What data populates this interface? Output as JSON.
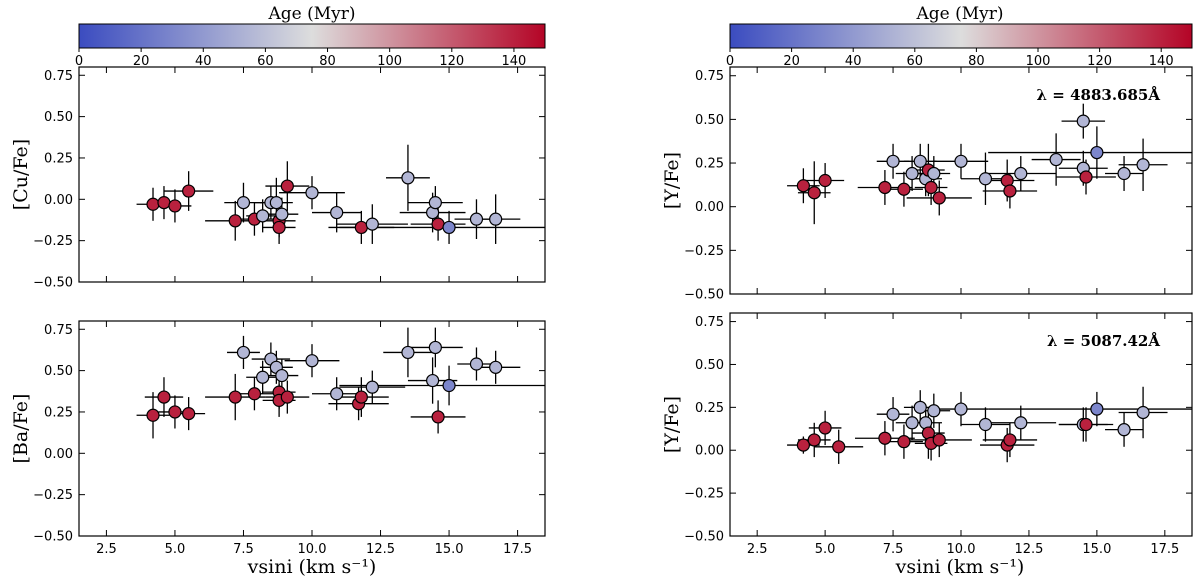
{
  "colorbar": {
    "title": "Age (Myr)",
    "range": [
      0,
      150
    ],
    "ticks": [
      0,
      20,
      40,
      60,
      80,
      100,
      120,
      140
    ],
    "colors": {
      "low": "#3b4cc0",
      "mid": "#dddddd",
      "high": "#b40426"
    }
  },
  "x_axis": {
    "label": "vsini (km s⁻¹)",
    "range": [
      1.5,
      18.5
    ],
    "ticks": [
      2.5,
      5.0,
      7.5,
      10.0,
      12.5,
      15.0,
      17.5
    ],
    "tick_labels": [
      "2.5",
      "5.0",
      "7.5",
      "10.0",
      "12.5",
      "15.0",
      "17.5"
    ]
  },
  "y_ticks": [
    0.75,
    0.5,
    0.25,
    0.0,
    -0.25,
    -0.5
  ],
  "y_tick_labels": [
    "0.75",
    "0.50",
    "0.25",
    "0.00",
    "−0.25",
    "−0.50"
  ],
  "chart_data": [
    {
      "type": "scatter",
      "id": "cu",
      "ylabel": "[Cu/Fe]",
      "annotation": "",
      "ylim": [
        -0.5,
        0.8
      ],
      "points": [
        {
          "x": 4.2,
          "y": -0.03,
          "xerr": 0.6,
          "yerr": 0.1,
          "age": 140
        },
        {
          "x": 4.6,
          "y": -0.02,
          "xerr": 0.6,
          "yerr": 0.1,
          "age": 140
        },
        {
          "x": 5.0,
          "y": -0.04,
          "xerr": 0.6,
          "yerr": 0.1,
          "age": 140
        },
        {
          "x": 5.5,
          "y": 0.05,
          "xerr": 0.9,
          "yerr": 0.12,
          "age": 140
        },
        {
          "x": 7.2,
          "y": -0.13,
          "xerr": 1.1,
          "yerr": 0.12,
          "age": 140
        },
        {
          "x": 7.5,
          "y": -0.02,
          "xerr": 0.7,
          "yerr": 0.12,
          "age": 55
        },
        {
          "x": 7.9,
          "y": -0.12,
          "xerr": 0.7,
          "yerr": 0.1,
          "age": 140
        },
        {
          "x": 8.2,
          "y": -0.1,
          "xerr": 0.6,
          "yerr": 0.1,
          "age": 55
        },
        {
          "x": 8.5,
          "y": -0.02,
          "xerr": 0.6,
          "yerr": 0.1,
          "age": 55
        },
        {
          "x": 8.7,
          "y": -0.02,
          "xerr": 0.6,
          "yerr": 0.15,
          "age": 55
        },
        {
          "x": 8.8,
          "y": -0.13,
          "xerr": 0.6,
          "yerr": 0.1,
          "age": 140
        },
        {
          "x": 8.8,
          "y": -0.17,
          "xerr": 0.6,
          "yerr": 0.1,
          "age": 140
        },
        {
          "x": 8.9,
          "y": -0.09,
          "xerr": 0.6,
          "yerr": 0.1,
          "age": 55
        },
        {
          "x": 9.1,
          "y": 0.08,
          "xerr": 0.8,
          "yerr": 0.15,
          "age": 140
        },
        {
          "x": 10.0,
          "y": 0.04,
          "xerr": 1.2,
          "yerr": 0.1,
          "age": 55
        },
        {
          "x": 10.9,
          "y": -0.08,
          "xerr": 0.9,
          "yerr": 0.12,
          "age": 55
        },
        {
          "x": 11.8,
          "y": -0.17,
          "xerr": 1.2,
          "yerr": 0.1,
          "age": 140
        },
        {
          "x": 12.2,
          "y": -0.15,
          "xerr": 1.3,
          "yerr": 0.12,
          "age": 55
        },
        {
          "x": 13.5,
          "y": 0.13,
          "xerr": 0.8,
          "yerr": 0.2,
          "age": 55
        },
        {
          "x": 14.4,
          "y": -0.08,
          "xerr": 1.2,
          "yerr": 0.12,
          "age": 55
        },
        {
          "x": 14.5,
          "y": -0.02,
          "xerr": 1.0,
          "yerr": 0.1,
          "age": 55
        },
        {
          "x": 14.6,
          "y": -0.15,
          "xerr": 1.0,
          "yerr": 0.1,
          "age": 140
        },
        {
          "x": 15.0,
          "y": -0.17,
          "xerr": 4.0,
          "yerr": 0.1,
          "age": 30
        },
        {
          "x": 16.0,
          "y": -0.12,
          "xerr": 0.8,
          "yerr": 0.12,
          "age": 55
        },
        {
          "x": 16.7,
          "y": -0.12,
          "xerr": 0.9,
          "yerr": 0.15,
          "age": 55
        }
      ]
    },
    {
      "type": "scatter",
      "id": "ba",
      "ylabel": "[Ba/Fe]",
      "annotation": "",
      "ylim": [
        -0.5,
        0.8
      ],
      "points": [
        {
          "x": 4.2,
          "y": 0.23,
          "xerr": 0.6,
          "yerr": 0.14,
          "age": 140
        },
        {
          "x": 4.6,
          "y": 0.34,
          "xerr": 0.7,
          "yerr": 0.12,
          "age": 140
        },
        {
          "x": 5.0,
          "y": 0.25,
          "xerr": 0.6,
          "yerr": 0.1,
          "age": 140
        },
        {
          "x": 5.5,
          "y": 0.24,
          "xerr": 0.6,
          "yerr": 0.1,
          "age": 140
        },
        {
          "x": 7.2,
          "y": 0.34,
          "xerr": 1.1,
          "yerr": 0.14,
          "age": 140
        },
        {
          "x": 7.5,
          "y": 0.61,
          "xerr": 0.6,
          "yerr": 0.1,
          "age": 55
        },
        {
          "x": 7.9,
          "y": 0.36,
          "xerr": 0.7,
          "yerr": 0.1,
          "age": 140
        },
        {
          "x": 8.2,
          "y": 0.46,
          "xerr": 0.6,
          "yerr": 0.1,
          "age": 55
        },
        {
          "x": 8.5,
          "y": 0.57,
          "xerr": 0.7,
          "yerr": 0.1,
          "age": 55
        },
        {
          "x": 8.7,
          "y": 0.52,
          "xerr": 0.6,
          "yerr": 0.1,
          "age": 55
        },
        {
          "x": 8.8,
          "y": 0.37,
          "xerr": 0.6,
          "yerr": 0.1,
          "age": 140
        },
        {
          "x": 8.8,
          "y": 0.32,
          "xerr": 0.6,
          "yerr": 0.1,
          "age": 140
        },
        {
          "x": 8.9,
          "y": 0.47,
          "xerr": 0.6,
          "yerr": 0.1,
          "age": 55
        },
        {
          "x": 9.1,
          "y": 0.34,
          "xerr": 0.8,
          "yerr": 0.1,
          "age": 140
        },
        {
          "x": 10.0,
          "y": 0.56,
          "xerr": 1.0,
          "yerr": 0.1,
          "age": 55
        },
        {
          "x": 10.9,
          "y": 0.36,
          "xerr": 0.9,
          "yerr": 0.1,
          "age": 55
        },
        {
          "x": 11.7,
          "y": 0.3,
          "xerr": 1.1,
          "yerr": 0.1,
          "age": 140
        },
        {
          "x": 11.8,
          "y": 0.34,
          "xerr": 1.0,
          "yerr": 0.12,
          "age": 140
        },
        {
          "x": 12.2,
          "y": 0.4,
          "xerr": 1.2,
          "yerr": 0.1,
          "age": 55
        },
        {
          "x": 13.5,
          "y": 0.61,
          "xerr": 0.9,
          "yerr": 0.15,
          "age": 55
        },
        {
          "x": 14.4,
          "y": 0.44,
          "xerr": 0.9,
          "yerr": 0.14,
          "age": 55
        },
        {
          "x": 14.5,
          "y": 0.64,
          "xerr": 1.0,
          "yerr": 0.12,
          "age": 55
        },
        {
          "x": 14.6,
          "y": 0.22,
          "xerr": 1.0,
          "yerr": 0.1,
          "age": 140
        },
        {
          "x": 15.0,
          "y": 0.41,
          "xerr": 4.0,
          "yerr": 0.12,
          "age": 30
        },
        {
          "x": 16.0,
          "y": 0.54,
          "xerr": 0.7,
          "yerr": 0.1,
          "age": 55
        },
        {
          "x": 16.7,
          "y": 0.52,
          "xerr": 0.9,
          "yerr": 0.1,
          "age": 55
        }
      ]
    },
    {
      "type": "scatter",
      "id": "y1",
      "ylabel": "[Y/Fe]",
      "annotation": "λ = 4883.685Å",
      "ylim": [
        -0.5,
        0.8
      ],
      "points": [
        {
          "x": 4.2,
          "y": 0.12,
          "xerr": 0.6,
          "yerr": 0.1,
          "age": 140
        },
        {
          "x": 4.6,
          "y": 0.08,
          "xerr": 0.6,
          "yerr": 0.18,
          "age": 140
        },
        {
          "x": 5.0,
          "y": 0.15,
          "xerr": 0.7,
          "yerr": 0.1,
          "age": 140
        },
        {
          "x": 7.2,
          "y": 0.11,
          "xerr": 1.0,
          "yerr": 0.1,
          "age": 140
        },
        {
          "x": 7.5,
          "y": 0.26,
          "xerr": 0.6,
          "yerr": 0.1,
          "age": 55
        },
        {
          "x": 7.9,
          "y": 0.1,
          "xerr": 0.7,
          "yerr": 0.1,
          "age": 140
        },
        {
          "x": 8.2,
          "y": 0.19,
          "xerr": 0.6,
          "yerr": 0.1,
          "age": 55
        },
        {
          "x": 8.5,
          "y": 0.26,
          "xerr": 0.6,
          "yerr": 0.1,
          "age": 55
        },
        {
          "x": 8.7,
          "y": 0.16,
          "xerr": 0.6,
          "yerr": 0.1,
          "age": 55
        },
        {
          "x": 8.8,
          "y": 0.21,
          "xerr": 0.6,
          "yerr": 0.15,
          "age": 140
        },
        {
          "x": 8.9,
          "y": 0.11,
          "xerr": 0.6,
          "yerr": 0.1,
          "age": 140
        },
        {
          "x": 9.0,
          "y": 0.19,
          "xerr": 0.6,
          "yerr": 0.1,
          "age": 55
        },
        {
          "x": 9.2,
          "y": 0.05,
          "xerr": 1.2,
          "yerr": 0.1,
          "age": 140
        },
        {
          "x": 10.0,
          "y": 0.26,
          "xerr": 1.0,
          "yerr": 0.1,
          "age": 55
        },
        {
          "x": 10.9,
          "y": 0.16,
          "xerr": 0.9,
          "yerr": 0.15,
          "age": 55
        },
        {
          "x": 11.7,
          "y": 0.15,
          "xerr": 1.0,
          "yerr": 0.12,
          "age": 140
        },
        {
          "x": 11.8,
          "y": 0.09,
          "xerr": 1.0,
          "yerr": 0.1,
          "age": 140
        },
        {
          "x": 12.2,
          "y": 0.19,
          "xerr": 1.3,
          "yerr": 0.1,
          "age": 55
        },
        {
          "x": 13.5,
          "y": 0.27,
          "xerr": 0.9,
          "yerr": 0.15,
          "age": 55
        },
        {
          "x": 14.5,
          "y": 0.22,
          "xerr": 0.9,
          "yerr": 0.1,
          "age": 55
        },
        {
          "x": 14.5,
          "y": 0.49,
          "xerr": 0.8,
          "yerr": 0.1,
          "age": 55
        },
        {
          "x": 14.6,
          "y": 0.17,
          "xerr": 1.1,
          "yerr": 0.1,
          "age": 140
        },
        {
          "x": 15.0,
          "y": 0.31,
          "xerr": 4.0,
          "yerr": 0.15,
          "age": 30
        },
        {
          "x": 16.0,
          "y": 0.19,
          "xerr": 0.7,
          "yerr": 0.1,
          "age": 55
        },
        {
          "x": 16.7,
          "y": 0.24,
          "xerr": 0.9,
          "yerr": 0.15,
          "age": 55
        }
      ]
    },
    {
      "type": "scatter",
      "id": "y2",
      "ylabel": "[Y/Fe]",
      "annotation": "λ = 5087.42Å",
      "ylim": [
        -0.5,
        0.8
      ],
      "points": [
        {
          "x": 4.2,
          "y": 0.03,
          "xerr": 0.6,
          "yerr": 0.05,
          "age": 140
        },
        {
          "x": 4.6,
          "y": 0.06,
          "xerr": 0.6,
          "yerr": 0.1,
          "age": 140
        },
        {
          "x": 5.0,
          "y": 0.13,
          "xerr": 0.6,
          "yerr": 0.1,
          "age": 140
        },
        {
          "x": 5.5,
          "y": 0.02,
          "xerr": 0.9,
          "yerr": 0.1,
          "age": 140
        },
        {
          "x": 7.2,
          "y": 0.07,
          "xerr": 1.1,
          "yerr": 0.1,
          "age": 140
        },
        {
          "x": 7.5,
          "y": 0.21,
          "xerr": 0.6,
          "yerr": 0.1,
          "age": 55
        },
        {
          "x": 7.9,
          "y": 0.05,
          "xerr": 0.7,
          "yerr": 0.1,
          "age": 140
        },
        {
          "x": 8.2,
          "y": 0.16,
          "xerr": 0.6,
          "yerr": 0.1,
          "age": 55
        },
        {
          "x": 8.5,
          "y": 0.25,
          "xerr": 0.6,
          "yerr": 0.1,
          "age": 55
        },
        {
          "x": 8.7,
          "y": 0.16,
          "xerr": 0.6,
          "yerr": 0.1,
          "age": 55
        },
        {
          "x": 8.8,
          "y": 0.1,
          "xerr": 0.6,
          "yerr": 0.15,
          "age": 140
        },
        {
          "x": 8.9,
          "y": 0.04,
          "xerr": 0.6,
          "yerr": 0.1,
          "age": 140
        },
        {
          "x": 9.0,
          "y": 0.23,
          "xerr": 0.6,
          "yerr": 0.1,
          "age": 55
        },
        {
          "x": 9.2,
          "y": 0.06,
          "xerr": 1.2,
          "yerr": 0.1,
          "age": 140
        },
        {
          "x": 10.0,
          "y": 0.24,
          "xerr": 1.0,
          "yerr": 0.1,
          "age": 55
        },
        {
          "x": 10.9,
          "y": 0.15,
          "xerr": 0.9,
          "yerr": 0.1,
          "age": 55
        },
        {
          "x": 11.7,
          "y": 0.03,
          "xerr": 1.0,
          "yerr": 0.1,
          "age": 140
        },
        {
          "x": 11.8,
          "y": 0.06,
          "xerr": 1.0,
          "yerr": 0.1,
          "age": 140
        },
        {
          "x": 12.2,
          "y": 0.16,
          "xerr": 1.3,
          "yerr": 0.1,
          "age": 55
        },
        {
          "x": 14.5,
          "y": 0.15,
          "xerr": 0.9,
          "yerr": 0.1,
          "age": 55
        },
        {
          "x": 14.6,
          "y": 0.15,
          "xerr": 1.0,
          "yerr": 0.1,
          "age": 140
        },
        {
          "x": 15.0,
          "y": 0.24,
          "xerr": 4.0,
          "yerr": 0.1,
          "age": 30
        },
        {
          "x": 16.0,
          "y": 0.12,
          "xerr": 0.7,
          "yerr": 0.1,
          "age": 55
        },
        {
          "x": 16.7,
          "y": 0.22,
          "xerr": 0.9,
          "yerr": 0.15,
          "age": 55
        }
      ]
    }
  ]
}
